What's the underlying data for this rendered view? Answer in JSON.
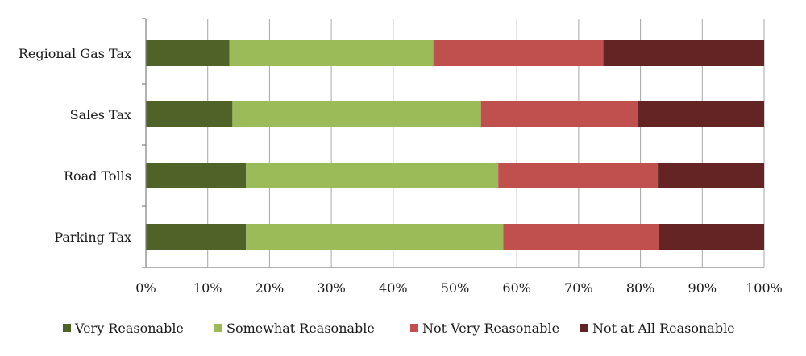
{
  "chart_data": {
    "type": "bar",
    "orientation": "horizontal",
    "stacked": "percent",
    "categories": [
      "Regional Gas Tax",
      "Sales Tax",
      "Road Tolls",
      "Parking Tax"
    ],
    "series": [
      {
        "name": "Very Reasonable",
        "color": "#4f6228",
        "values": [
          13.5,
          14.0,
          16.2,
          16.2
        ]
      },
      {
        "name": "Somewhat Reasonable",
        "color": "#9bbb59",
        "values": [
          33.0,
          40.2,
          40.8,
          41.6
        ]
      },
      {
        "name": "Not Very Reasonable",
        "color": "#c0504d",
        "values": [
          27.5,
          25.3,
          25.8,
          25.2
        ]
      },
      {
        "name": "Not at All Reasonable",
        "color": "#632423",
        "values": [
          26.0,
          20.5,
          17.2,
          17.0
        ]
      }
    ],
    "x_ticks": [
      "0%",
      "10%",
      "20%",
      "30%",
      "40%",
      "50%",
      "60%",
      "70%",
      "80%",
      "90%",
      "100%"
    ],
    "xlim": [
      0,
      100
    ],
    "grid": true,
    "legend_position": "bottom"
  }
}
